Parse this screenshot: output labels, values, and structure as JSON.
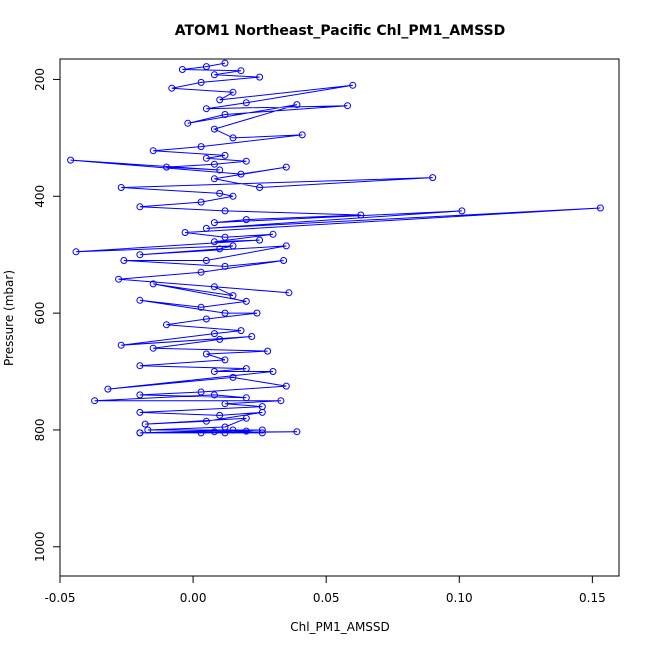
{
  "chart_data": {
    "type": "scatter",
    "title": "ATOM1 Northeast_Pacific Chl_PM1_AMSSD",
    "xlabel": "Chl_PM1_AMSSD",
    "ylabel": "Pressure (mbar)",
    "xlim": [
      -0.05,
      0.16
    ],
    "ylim": [
      1050,
      165
    ],
    "y_reversed": true,
    "x_ticks": [
      -0.05,
      0.0,
      0.05,
      0.1,
      0.15
    ],
    "x_tick_labels": [
      "-0.05",
      "0.00",
      "0.05",
      "0.10",
      "0.15"
    ],
    "y_ticks": [
      200,
      400,
      600,
      800,
      1000
    ],
    "y_tick_labels": [
      "200",
      "400",
      "600",
      "800",
      "1000"
    ],
    "grid": false,
    "legend": "none",
    "series": [
      {
        "color": "#0000ff",
        "marker": "open-circle",
        "line": true,
        "x": [
          0.012,
          0.005,
          -0.004,
          0.018,
          0.008,
          0.025,
          0.003,
          -0.008,
          0.015,
          0.01,
          0.06,
          0.02,
          0.005,
          0.058,
          0.012,
          -0.002,
          0.039,
          0.008,
          0.015,
          0.041,
          0.003,
          -0.015,
          0.012,
          0.005,
          0.02,
          0.008,
          -0.01,
          0.01,
          -0.046,
          0.018,
          0.035,
          0.008,
          0.025,
          0.09,
          -0.027,
          0.01,
          0.015,
          0.003,
          -0.02,
          0.012,
          0.063,
          0.02,
          0.008,
          0.101,
          0.005,
          0.153,
          -0.003,
          0.012,
          0.03,
          0.008,
          0.025,
          -0.044,
          0.015,
          0.01,
          -0.02,
          0.035,
          0.005,
          -0.026,
          0.012,
          0.034,
          0.003,
          -0.028,
          0.036,
          0.008,
          0.015,
          -0.015,
          0.02,
          0.003,
          -0.02,
          0.012,
          0.024,
          0.005,
          -0.01,
          0.018,
          0.008,
          -0.027,
          0.022,
          0.01,
          -0.015,
          0.028,
          0.005,
          0.012,
          -0.02,
          0.02,
          0.008,
          0.03,
          -0.032,
          0.015,
          0.035,
          0.003,
          -0.02,
          0.02,
          0.008,
          -0.037,
          0.033,
          0.012,
          0.026,
          -0.02,
          0.01,
          0.026,
          0.005,
          -0.018,
          0.02,
          0.012,
          -0.017,
          0.026,
          0.008,
          -0.02,
          0.015,
          0.026,
          0.003,
          0.039,
          -0.02,
          0.012,
          0.02
        ],
        "y": [
          172,
          178,
          183,
          185,
          192,
          196,
          205,
          215,
          222,
          235,
          210,
          240,
          250,
          245,
          260,
          275,
          243,
          285,
          300,
          295,
          315,
          322,
          330,
          335,
          340,
          345,
          350,
          355,
          338,
          362,
          350,
          370,
          385,
          368,
          385,
          395,
          400,
          410,
          418,
          425,
          432,
          440,
          445,
          425,
          455,
          420,
          462,
          470,
          465,
          478,
          475,
          495,
          485,
          490,
          500,
          485,
          510,
          510,
          520,
          510,
          530,
          542,
          565,
          555,
          570,
          550,
          580,
          590,
          578,
          600,
          600,
          610,
          620,
          630,
          635,
          655,
          640,
          645,
          660,
          665,
          670,
          680,
          690,
          695,
          700,
          700,
          730,
          710,
          725,
          735,
          740,
          745,
          740,
          750,
          750,
          755,
          760,
          770,
          775,
          770,
          785,
          790,
          780,
          795,
          800,
          800,
          803,
          805,
          800,
          805,
          805,
          803,
          805,
          805,
          802
        ]
      }
    ]
  }
}
